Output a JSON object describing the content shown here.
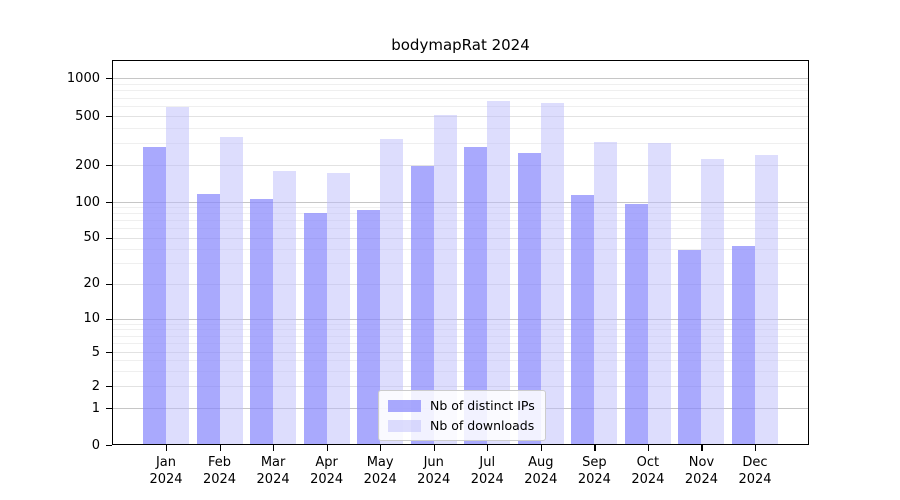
{
  "title": "bodymapRat 2024",
  "chart_data": {
    "type": "bar",
    "title": "bodymapRat 2024",
    "categories": [
      "Jan",
      "Feb",
      "Mar",
      "Apr",
      "May",
      "Jun",
      "Jul",
      "Aug",
      "Sep",
      "Oct",
      "Nov",
      "Dec"
    ],
    "category_year": "2024",
    "series": [
      {
        "name": "Nb of distinct IPs",
        "color": "rgba(136,136,252,0.72)",
        "values": [
          280,
          117,
          106,
          81,
          86,
          197,
          278,
          250,
          115,
          97,
          39,
          42
        ]
      },
      {
        "name": "Nb of downloads",
        "color": "rgba(187,187,252,0.50)",
        "values": [
          590,
          335,
          180,
          172,
          328,
          505,
          655,
          630,
          310,
          300,
          223,
          240
        ]
      }
    ],
    "yscale": "symlog",
    "yticks": [
      0,
      1,
      2,
      5,
      10,
      20,
      50,
      100,
      200,
      500,
      1000
    ],
    "ylim": [
      0,
      1000
    ],
    "grid": true,
    "legend_position": "lower center",
    "grid_colors": {
      "decade": "#c6c6c6",
      "major": "#e2e2e2",
      "minor": "#efefef"
    }
  }
}
